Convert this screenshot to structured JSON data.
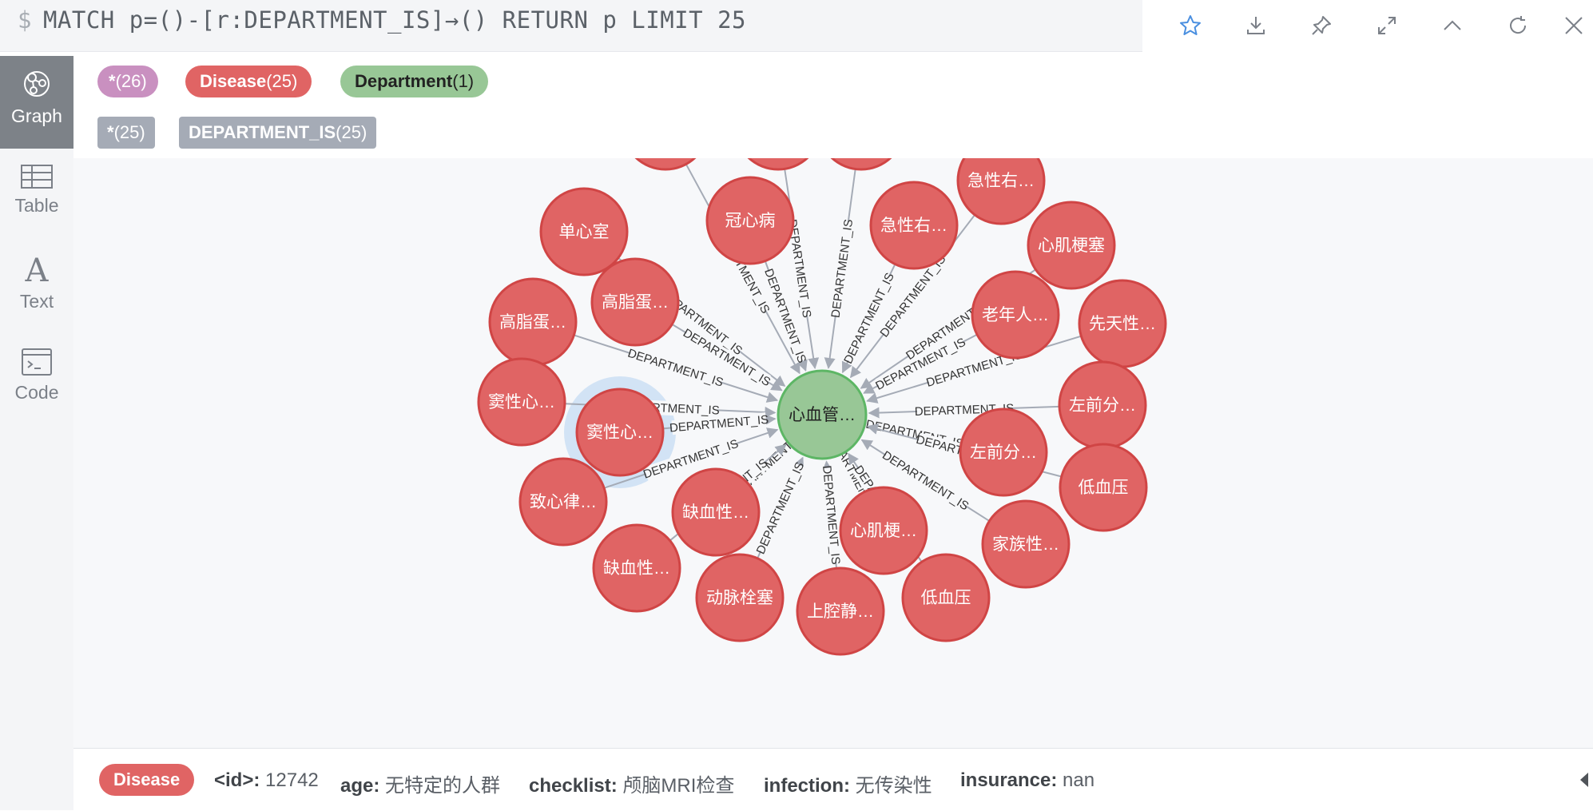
{
  "query": {
    "prompt": "$",
    "text": "MATCH p=()-[r:DEPARTMENT_IS]→() RETURN p LIMIT 25"
  },
  "toolbar": {
    "icons": [
      "star-icon",
      "download-icon",
      "pin-icon",
      "expand-icon",
      "collapse-up-icon",
      "rerun-icon",
      "close-icon"
    ]
  },
  "nav": {
    "items": [
      {
        "label": "Graph",
        "icon": "graph-icon",
        "active": true
      },
      {
        "label": "Table",
        "icon": "table-icon",
        "active": false
      },
      {
        "label": "Text",
        "icon": "text-icon",
        "active": false
      },
      {
        "label": "Code",
        "icon": "code-icon",
        "active": false
      }
    ]
  },
  "legend": {
    "all_nodes": {
      "name": "*",
      "count": "(26)",
      "color": "#c990c0"
    },
    "disease": {
      "name": "Disease",
      "count": "(25)",
      "color": "#e06464"
    },
    "department": {
      "name": "Department",
      "count": "(1)",
      "color": "#98c796"
    },
    "all_rels": {
      "name": "*",
      "count": "(25)"
    },
    "rel_type": {
      "name": "DEPARTMENT_IS",
      "count": "(25)"
    }
  },
  "graph": {
    "center": {
      "label": "心血管…",
      "color": "#98c796",
      "stroke": "#5db665"
    },
    "node_color": "#e06464",
    "node_stroke": "#d04545",
    "edge_label": "DEPARTMENT_IS",
    "nodes": [
      {
        "label": "单心室"
      },
      {
        "label": "单心室"
      },
      {
        "label": "冠心病"
      },
      {
        "label": "急性右…"
      },
      {
        "label": "急性右…"
      },
      {
        "label": "心肌梗塞"
      },
      {
        "label": "高脂蛋…"
      },
      {
        "label": "高脂蛋…"
      },
      {
        "label": "老年人…"
      },
      {
        "label": "先天性…"
      },
      {
        "label": "窦性心…"
      },
      {
        "label": "窦性心…"
      },
      {
        "label": "左前分…"
      },
      {
        "label": "左前分…"
      },
      {
        "label": "致心律…"
      },
      {
        "label": "低血压"
      },
      {
        "label": "缺血性…"
      },
      {
        "label": "缺血性…"
      },
      {
        "label": "心肌梗…"
      },
      {
        "label": "家族性…"
      },
      {
        "label": "动脉栓塞"
      },
      {
        "label": "上腔静…"
      },
      {
        "label": "低血压"
      },
      {
        "label": ""
      },
      {
        "label": ""
      }
    ]
  },
  "inspector": {
    "badge": "Disease",
    "props": [
      {
        "key": "<id>:",
        "value": "12742"
      },
      {
        "key": "age:",
        "value": "无特定的人群"
      },
      {
        "key": "checklist:",
        "value": "颅脑MRI检查"
      },
      {
        "key": "infection:",
        "value": "无传染性"
      },
      {
        "key": "insurance:",
        "value": "nan"
      }
    ]
  }
}
